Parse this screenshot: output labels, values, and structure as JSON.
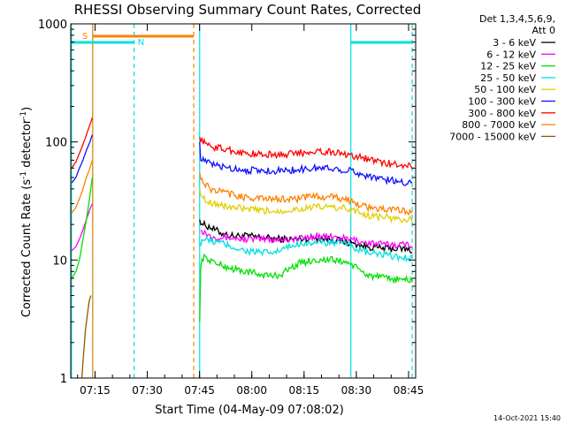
{
  "chart_data": {
    "type": "line",
    "title": "RHESSI Observing Summary Count Rates, Corrected",
    "xlabel": "Start Time (04-May-09 07:08:02)",
    "ylabel_main": "Corrected Count Rate (s",
    "ylabel_sup1": "-1",
    "ylabel_mid": " detector",
    "ylabel_sup2": "-1",
    "ylabel_end": ")",
    "y_scale": "log",
    "ylim": [
      1,
      1000
    ],
    "xlim_minutes": [
      0,
      99
    ],
    "x_ticks": [
      {
        "label": "07:15",
        "t": 6.97
      },
      {
        "label": "07:30",
        "t": 21.97
      },
      {
        "label": "07:45",
        "t": 36.97
      },
      {
        "label": "08:00",
        "t": 51.97
      },
      {
        "label": "08:15",
        "t": 66.97
      },
      {
        "label": "08:30",
        "t": 81.97
      },
      {
        "label": "08:45",
        "t": 96.97
      }
    ],
    "y_ticks": [
      {
        "label": "1",
        "v": 1
      },
      {
        "label": "10",
        "v": 10
      },
      {
        "label": "100",
        "v": 100
      },
      {
        "label": "1000",
        "v": 1000
      }
    ],
    "legend_header": [
      "Det 1,3,4,5,6,9,",
      "Att 0"
    ],
    "series": [
      {
        "name": "3 - 6 keV",
        "color": "#000000",
        "points": [
          [
            37.0,
            22
          ],
          [
            38,
            20
          ],
          [
            40,
            19
          ],
          [
            43,
            17
          ],
          [
            46,
            16
          ],
          [
            50,
            16
          ],
          [
            55,
            15.5
          ],
          [
            60,
            15
          ],
          [
            65,
            15
          ],
          [
            70,
            15.5
          ],
          [
            75,
            15
          ],
          [
            80,
            14
          ],
          [
            85,
            13
          ],
          [
            90,
            12.5
          ],
          [
            95,
            12.5
          ],
          [
            98,
            12
          ]
        ]
      },
      {
        "name": "6 - 12 keV",
        "color": "#ff00ff",
        "points": [
          [
            0.3,
            12
          ],
          [
            1.5,
            13
          ],
          [
            2.5,
            15
          ],
          [
            3.5,
            18
          ],
          [
            4.5,
            22
          ],
          [
            5.5,
            27
          ],
          [
            6.2,
            30
          ],
          [
            37.5,
            18
          ],
          [
            40,
            16
          ],
          [
            45,
            15.5
          ],
          [
            50,
            15
          ],
          [
            55,
            15
          ],
          [
            60,
            15
          ],
          [
            65,
            15
          ],
          [
            70,
            16
          ],
          [
            75,
            15.5
          ],
          [
            80,
            15
          ],
          [
            85,
            14
          ],
          [
            90,
            13.5
          ],
          [
            95,
            13.5
          ],
          [
            98,
            13.5
          ]
        ]
      },
      {
        "name": "12 - 25 keV",
        "color": "#00e000",
        "points": [
          [
            0.3,
            7
          ],
          [
            1.5,
            8
          ],
          [
            2.5,
            10
          ],
          [
            3.5,
            15
          ],
          [
            4.5,
            22
          ],
          [
            5.5,
            35
          ],
          [
            6.2,
            50
          ],
          [
            37.0,
            3
          ],
          [
            37.3,
            9
          ],
          [
            38,
            10.5
          ],
          [
            40,
            10
          ],
          [
            43,
            9
          ],
          [
            46,
            8.5
          ],
          [
            50,
            8
          ],
          [
            55,
            7.5
          ],
          [
            58,
            7.3
          ],
          [
            60,
            7.5
          ],
          [
            63,
            8.5
          ],
          [
            66,
            9.5
          ],
          [
            70,
            10
          ],
          [
            75,
            10
          ],
          [
            80,
            9.5
          ],
          [
            82,
            8.5
          ],
          [
            85,
            7.5
          ],
          [
            90,
            7
          ],
          [
            95,
            6.8
          ],
          [
            98,
            6.8
          ]
        ]
      },
      {
        "name": "25 - 50 keV",
        "color": "#00e0e0",
        "points": [
          [
            37.0,
            14
          ],
          [
            38,
            15
          ],
          [
            40,
            14.5
          ],
          [
            43,
            14
          ],
          [
            46,
            13
          ],
          [
            50,
            12
          ],
          [
            55,
            11.5
          ],
          [
            58,
            11.5
          ],
          [
            60,
            12
          ],
          [
            63,
            13
          ],
          [
            66,
            14
          ],
          [
            70,
            14
          ],
          [
            75,
            14
          ],
          [
            80,
            13.5
          ],
          [
            82,
            12.5
          ],
          [
            85,
            11.5
          ],
          [
            90,
            11
          ],
          [
            95,
            10.5
          ],
          [
            98,
            10.5
          ]
        ]
      },
      {
        "name": "50 - 100 keV",
        "color": "#e0d000",
        "points": [
          [
            37.0,
            40
          ],
          [
            38,
            33
          ],
          [
            40,
            31
          ],
          [
            43,
            29
          ],
          [
            46,
            28
          ],
          [
            50,
            27
          ],
          [
            55,
            26
          ],
          [
            60,
            26
          ],
          [
            65,
            27
          ],
          [
            70,
            28
          ],
          [
            75,
            28
          ],
          [
            80,
            27
          ],
          [
            85,
            24
          ],
          [
            90,
            23
          ],
          [
            95,
            22
          ],
          [
            98,
            22
          ]
        ]
      },
      {
        "name": "100 - 300 keV",
        "color": "#1010ff",
        "points": [
          [
            0.3,
            45
          ],
          [
            1.5,
            50
          ],
          [
            2.5,
            60
          ],
          [
            3.5,
            70
          ],
          [
            4.5,
            85
          ],
          [
            5.5,
            100
          ],
          [
            6.2,
            115
          ],
          [
            37.0,
            100
          ],
          [
            37.3,
            75
          ],
          [
            38,
            70
          ],
          [
            40,
            65
          ],
          [
            43,
            62
          ],
          [
            46,
            60
          ],
          [
            50,
            58
          ],
          [
            55,
            57
          ],
          [
            60,
            57
          ],
          [
            65,
            58
          ],
          [
            70,
            60
          ],
          [
            75,
            60
          ],
          [
            80,
            57
          ],
          [
            85,
            52
          ],
          [
            90,
            48
          ],
          [
            95,
            46
          ],
          [
            98,
            45
          ]
        ]
      },
      {
        "name": "300 - 800 keV",
        "color": "#ff0000",
        "points": [
          [
            0.3,
            60
          ],
          [
            1.5,
            68
          ],
          [
            2.5,
            80
          ],
          [
            3.5,
            95
          ],
          [
            4.5,
            115
          ],
          [
            5.5,
            140
          ],
          [
            6.2,
            160
          ],
          [
            37.0,
            110
          ],
          [
            38,
            100
          ],
          [
            40,
            92
          ],
          [
            43,
            88
          ],
          [
            46,
            85
          ],
          [
            50,
            80
          ],
          [
            55,
            78
          ],
          [
            60,
            78
          ],
          [
            65,
            80
          ],
          [
            70,
            84
          ],
          [
            75,
            82
          ],
          [
            80,
            78
          ],
          [
            85,
            72
          ],
          [
            90,
            66
          ],
          [
            95,
            64
          ],
          [
            98,
            63
          ]
        ]
      },
      {
        "name": "800 - 7000 keV",
        "color": "#ff8000",
        "points": [
          [
            0.3,
            25
          ],
          [
            1.5,
            28
          ],
          [
            2.5,
            33
          ],
          [
            3.5,
            40
          ],
          [
            4.5,
            50
          ],
          [
            5.5,
            60
          ],
          [
            6.2,
            70
          ],
          [
            37.0,
            55
          ],
          [
            38,
            45
          ],
          [
            40,
            40
          ],
          [
            43,
            38
          ],
          [
            46,
            36
          ],
          [
            50,
            34
          ],
          [
            55,
            33
          ],
          [
            60,
            33
          ],
          [
            65,
            33
          ],
          [
            70,
            35
          ],
          [
            75,
            34
          ],
          [
            80,
            32
          ],
          [
            85,
            28
          ],
          [
            90,
            27
          ],
          [
            95,
            26
          ],
          [
            98,
            26
          ]
        ]
      },
      {
        "name": "7000 - 15000 keV",
        "color": "#8b5a00",
        "points": [
          [
            3.2,
            1
          ],
          [
            3.6,
            1.5
          ],
          [
            4.2,
            2.5
          ],
          [
            4.8,
            3.5
          ],
          [
            5.3,
            4.5
          ],
          [
            5.8,
            5
          ]
        ]
      }
    ],
    "vertical_markers": [
      {
        "t": 0.2,
        "color": "#00e0e0",
        "style": "solid"
      },
      {
        "t": 6.3,
        "color": "#d08000",
        "style": "solid"
      },
      {
        "t": 18.2,
        "color": "#00e0e0",
        "style": "dashed"
      },
      {
        "t": 35.3,
        "color": "#ff8000",
        "style": "dashed"
      },
      {
        "t": 37.0,
        "color": "#00e0e0",
        "style": "solid"
      },
      {
        "t": 80.4,
        "color": "#00e0e0",
        "style": "solid"
      },
      {
        "t": 98.0,
        "color": "#00e0e0",
        "style": "dashed"
      }
    ],
    "bars": [
      {
        "label": "S",
        "color": "#ff8000",
        "t_start": 6.3,
        "t_end": 35.3
      },
      {
        "label": "N",
        "color": "#00e0e0",
        "t_start": 0.2,
        "t_end": 18.2
      },
      {
        "label": "",
        "color": "#00e0e0",
        "t_start": 80.4,
        "t_end": 98.0
      }
    ]
  },
  "footer_timestamp": "14-Oct-2021 15:40"
}
